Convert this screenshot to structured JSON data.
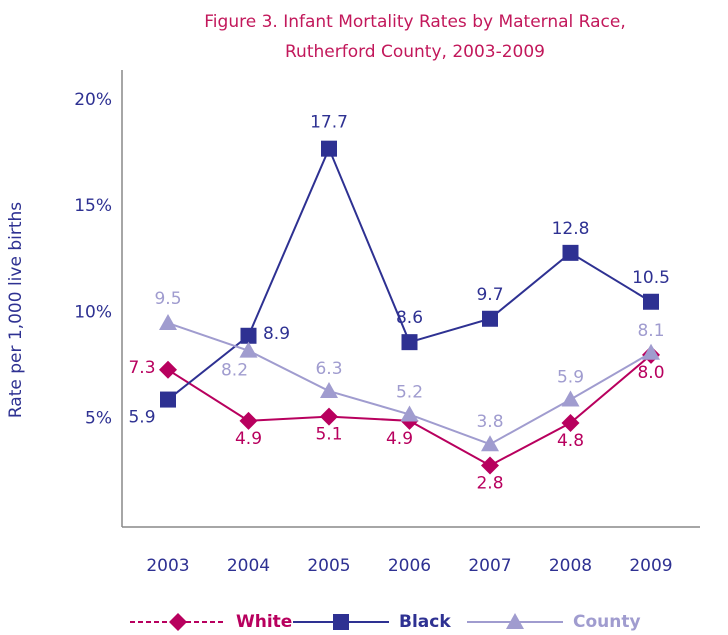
{
  "chart_data": {
    "type": "line",
    "title": [
      "Figure 3.  Infant Mortality Rates by Maternal Race,",
      "Rutherford County, 2003-2009"
    ],
    "y_label": "Rate per 1,000 live births",
    "categories": [
      "2003",
      "2004",
      "2005",
      "2006",
      "2007",
      "2008",
      "2009"
    ],
    "series": [
      {
        "name": "White",
        "color": "#b8005e",
        "marker": "diamond",
        "dash": true,
        "values": [
          7.3,
          4.9,
          5.1,
          4.9,
          2.8,
          4.8,
          8.0
        ],
        "value_labels": [
          "7.3",
          "4.9",
          "5.1",
          "4.9",
          "2.8",
          "4.8",
          "8.0"
        ]
      },
      {
        "name": "Black",
        "color": "#2e3192",
        "marker": "square",
        "values": [
          5.9,
          8.9,
          17.7,
          8.6,
          9.7,
          12.8,
          10.5
        ]
      },
      {
        "name": "County",
        "color": "#a09ccf",
        "marker": "triangle",
        "values": [
          9.5,
          8.2,
          6.3,
          5.2,
          3.8,
          5.9,
          8.1
        ]
      }
    ],
    "ylim": [
      0,
      21.4
    ],
    "yticks": [
      {
        "value": 5,
        "label": "5%"
      },
      {
        "value": 10,
        "label": "10%"
      },
      {
        "value": 15,
        "label": "15%"
      },
      {
        "value": 20,
        "label": "20%"
      }
    ],
    "grid": false,
    "legend": "bottom"
  }
}
